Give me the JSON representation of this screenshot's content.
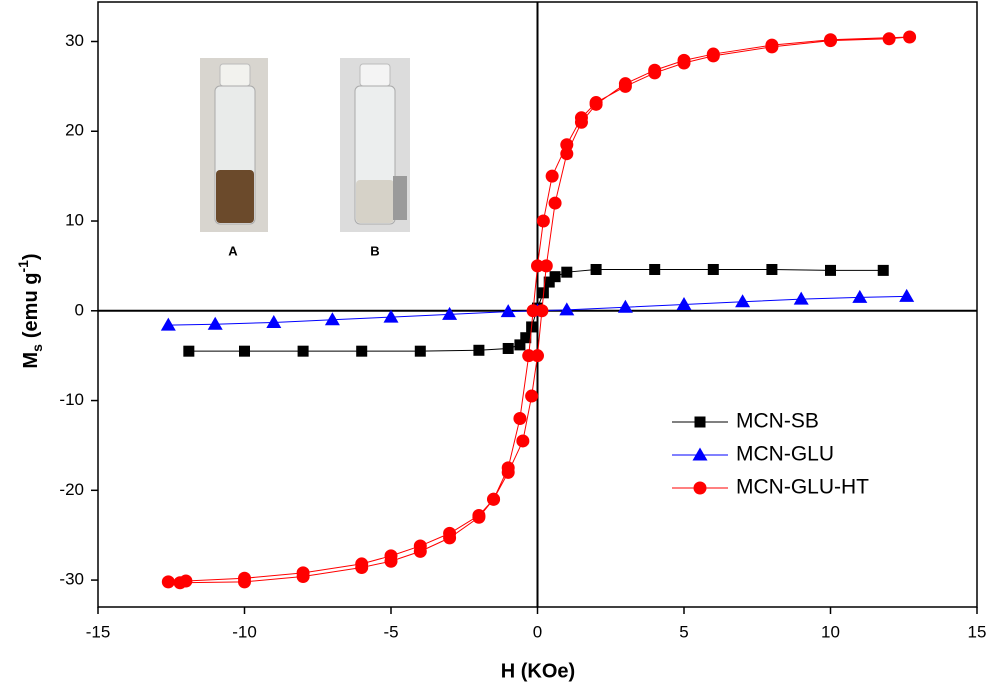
{
  "chart_data": {
    "type": "scatter-line",
    "x_label": "H (KOe)",
    "y_label_parts": [
      "M",
      "s",
      "(emu g",
      "-1",
      ")"
    ],
    "xlim": [
      -15,
      15
    ],
    "ylim": [
      -33,
      34.4
    ],
    "xticks": [
      -15,
      -10,
      -5,
      0,
      5,
      10,
      15
    ],
    "yticks": [
      -30,
      -20,
      -10,
      0,
      10,
      20,
      30
    ],
    "zero_lines": true,
    "legend": "lower right",
    "annotations": [
      "A",
      "B"
    ],
    "series": [
      {
        "name": "MCN-SB",
        "color": "#000000",
        "marker": "square",
        "x": [
          -11.9,
          -10,
          -8,
          -6,
          -4,
          -2,
          -1,
          -0.6,
          -0.4,
          -0.2,
          0,
          0.2,
          0.4,
          0.6,
          1,
          2,
          4,
          6,
          8,
          10,
          11.8
        ],
        "values": [
          -4.5,
          -4.5,
          -4.5,
          -4.5,
          -4.5,
          -4.4,
          -4.2,
          -3.8,
          -3.0,
          -1.8,
          0.3,
          2.0,
          3.2,
          3.8,
          4.3,
          4.6,
          4.6,
          4.6,
          4.6,
          4.5,
          4.5
        ]
      },
      {
        "name": "MCN-GLU",
        "color": "#0000ff",
        "marker": "triangle",
        "x": [
          -12.6,
          -11,
          -9,
          -7,
          -5,
          -3,
          -1,
          0,
          1,
          3,
          5,
          7,
          9,
          11,
          12.6
        ],
        "values": [
          -1.6,
          -1.5,
          -1.3,
          -1.0,
          -0.7,
          -0.4,
          -0.1,
          0,
          0.1,
          0.4,
          0.7,
          1.0,
          1.3,
          1.5,
          1.6
        ]
      },
      {
        "name": "MCN-GLU-HT",
        "color": "#ff0000",
        "marker": "circle",
        "x": [
          -12.6,
          -12,
          -10,
          -8,
          -6,
          -5,
          -4,
          -3,
          -2,
          -1.5,
          -1,
          -0.5,
          -0.2,
          0,
          0.15,
          0.3,
          0.6,
          1,
          1.5,
          2,
          3,
          4,
          5,
          6,
          8,
          10,
          12.7,
          12,
          10,
          8,
          6,
          5,
          4,
          3,
          2,
          1.5,
          1,
          0.5,
          0.2,
          0,
          -0.15,
          -0.3,
          -0.6,
          -1,
          -1.5,
          -2,
          -3,
          -4,
          -5,
          -6,
          -8,
          -10,
          -12.2
        ],
        "values": [
          -30.2,
          -30.1,
          -29.8,
          -29.2,
          -28.2,
          -27.3,
          -26.2,
          -24.8,
          -22.8,
          -21,
          -18,
          -14.5,
          -9.5,
          -5,
          0,
          5,
          12,
          17.5,
          21,
          23,
          25.3,
          26.8,
          27.9,
          28.6,
          29.6,
          30.2,
          30.5,
          30.3,
          30.1,
          29.4,
          28.4,
          27.6,
          26.5,
          25,
          23.2,
          21.5,
          18.5,
          15,
          10,
          5,
          0,
          -5,
          -12,
          -17.5,
          -21,
          -23,
          -25.3,
          -26.8,
          -27.9,
          -28.6,
          -29.6,
          -30.2,
          -30.3
        ]
      }
    ]
  }
}
